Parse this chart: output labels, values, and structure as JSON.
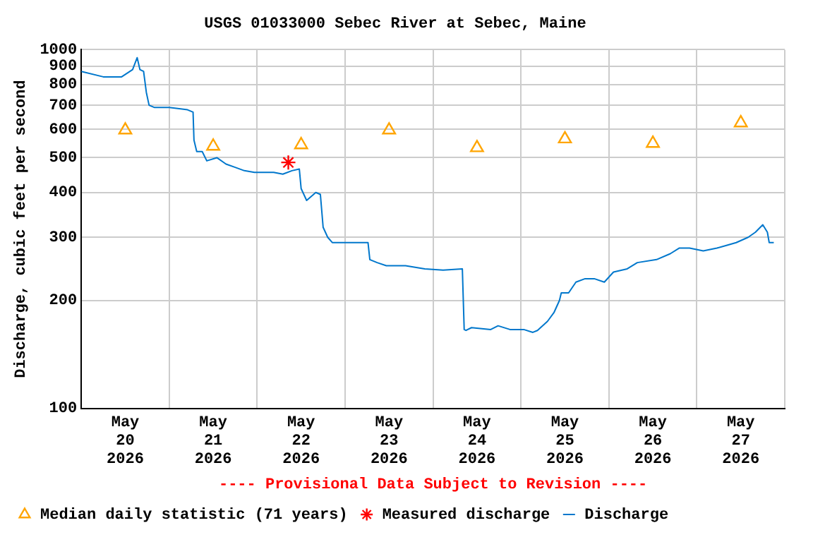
{
  "chart_data": {
    "type": "line",
    "title": "USGS 01033000 Sebec River at Sebec, Maine",
    "ylabel": "Discharge, cubic feet per second",
    "annotations": [
      "---- Provisional Data Subject to Revision ----"
    ],
    "log": "y",
    "grid": true,
    "legend": "bottom",
    "ylim": [
      100,
      1000
    ],
    "yticks": [
      100,
      200,
      300,
      400,
      500,
      600,
      700,
      800,
      900,
      1000
    ],
    "xlim": [
      "2026-05-20T00:00",
      "2026-05-28T00:00"
    ],
    "xticks": [
      {
        "value": "2026-05-20T00:00",
        "label": null
      },
      {
        "value": "2026-05-20T12:00",
        "label": "May 20 2026"
      },
      {
        "value": "2026-05-21T00:00",
        "label": null
      },
      {
        "value": "2026-05-21T12:00",
        "label": "May 21 2026"
      },
      {
        "value": "2026-05-22T00:00",
        "label": null
      },
      {
        "value": "2026-05-22T12:00",
        "label": "May 22 2026"
      },
      {
        "value": "2026-05-23T00:00",
        "label": null
      },
      {
        "value": "2026-05-23T12:00",
        "label": "May 23 2026"
      },
      {
        "value": "2026-05-24T00:00",
        "label": null
      },
      {
        "value": "2026-05-24T12:00",
        "label": "May 24 2026"
      },
      {
        "value": "2026-05-25T00:00",
        "label": null
      },
      {
        "value": "2026-05-25T12:00",
        "label": "May 25 2026"
      },
      {
        "value": "2026-05-26T00:00",
        "label": null
      },
      {
        "value": "2026-05-26T12:00",
        "label": "May 26 2026"
      },
      {
        "value": "2026-05-27T00:00",
        "label": null
      },
      {
        "value": "2026-05-27T12:00",
        "label": "May 27 2026"
      },
      {
        "value": "2026-05-28T00:00",
        "label": null
      }
    ],
    "series": [
      {
        "name": "Median daily statistic (71 years)",
        "type": "scatter",
        "marker": "triangle",
        "color": "#ffa500",
        "x": [
          "2026-05-20T12:00",
          "2026-05-21T12:00",
          "2026-05-22T12:00",
          "2026-05-23T12:00",
          "2026-05-24T12:00",
          "2026-05-25T12:00",
          "2026-05-26T12:00",
          "2026-05-27T12:00"
        ],
        "values": [
          597,
          538,
          543,
          597,
          533,
          564,
          548,
          625
        ]
      },
      {
        "name": "Measured discharge",
        "type": "scatter",
        "marker": "cross",
        "color": "#ff0000",
        "x": [
          "2026-05-22T08:30"
        ],
        "values": [
          485
        ]
      },
      {
        "name": "Discharge",
        "marker": "none",
        "line_style": "solid",
        "color": "#0077cc",
        "x": [
          "2026-05-20T00:00",
          "2026-05-20T06:00",
          "2026-05-20T11:00",
          "2026-05-20T14:00",
          "2026-05-20T15:15",
          "2026-05-20T16:00",
          "2026-05-20T17:00",
          "2026-05-20T17:45",
          "2026-05-20T18:30",
          "2026-05-20T20:00",
          "2026-05-21T00:00",
          "2026-05-21T05:00",
          "2026-05-21T06:30",
          "2026-05-21T06:45",
          "2026-05-21T07:30",
          "2026-05-21T09:00",
          "2026-05-21T10:15",
          "2026-05-21T13:00",
          "2026-05-21T15:30",
          "2026-05-21T18:00",
          "2026-05-21T20:30",
          "2026-05-21T23:15",
          "2026-05-22T04:30",
          "2026-05-22T07:00",
          "2026-05-22T09:30",
          "2026-05-22T11:30",
          "2026-05-22T12:00",
          "2026-05-22T13:30",
          "2026-05-22T16:00",
          "2026-05-22T17:15",
          "2026-05-22T18:00",
          "2026-05-22T19:15",
          "2026-05-22T20:30",
          "2026-05-23T01:00",
          "2026-05-23T06:15",
          "2026-05-23T06:45",
          "2026-05-23T08:45",
          "2026-05-23T11:15",
          "2026-05-23T14:00",
          "2026-05-23T16:30",
          "2026-05-23T21:45",
          "2026-05-24T02:45",
          "2026-05-24T08:00",
          "2026-05-24T08:30",
          "2026-05-24T09:00",
          "2026-05-24T10:30",
          "2026-05-24T15:45",
          "2026-05-24T17:45",
          "2026-05-24T21:00",
          "2026-05-25T00:45",
          "2026-05-25T03:15",
          "2026-05-25T04:30",
          "2026-05-25T07:15",
          "2026-05-25T09:00",
          "2026-05-25T10:30",
          "2026-05-25T11:00",
          "2026-05-25T13:00",
          "2026-05-25T15:00",
          "2026-05-25T17:30",
          "2026-05-25T20:00",
          "2026-05-25T22:45",
          "2026-05-26T01:15",
          "2026-05-26T05:00",
          "2026-05-26T07:45",
          "2026-05-26T13:00",
          "2026-05-26T16:45",
          "2026-05-26T19:15",
          "2026-05-26T22:00",
          "2026-05-27T01:45",
          "2026-05-27T05:30",
          "2026-05-27T08:15",
          "2026-05-27T10:45",
          "2026-05-27T14:00",
          "2026-05-27T16:00",
          "2026-05-27T18:00",
          "2026-05-27T19:15",
          "2026-05-27T19:45",
          "2026-05-27T21:00"
        ],
        "values": [
          870,
          840,
          840,
          880,
          950,
          880,
          870,
          760,
          700,
          690,
          690,
          680,
          670,
          560,
          520,
          520,
          490,
          500,
          480,
          470,
          460,
          455,
          455,
          450,
          460,
          465,
          410,
          380,
          400,
          395,
          320,
          300,
          290,
          290,
          290,
          260,
          255,
          250,
          250,
          250,
          245,
          243,
          245,
          166,
          165,
          168,
          166,
          170,
          166,
          166,
          163,
          165,
          175,
          185,
          200,
          210,
          210,
          225,
          230,
          230,
          225,
          240,
          245,
          255,
          260,
          270,
          280,
          280,
          275,
          280,
          285,
          290,
          300,
          310,
          325,
          310,
          290,
          290
        ]
      }
    ]
  }
}
